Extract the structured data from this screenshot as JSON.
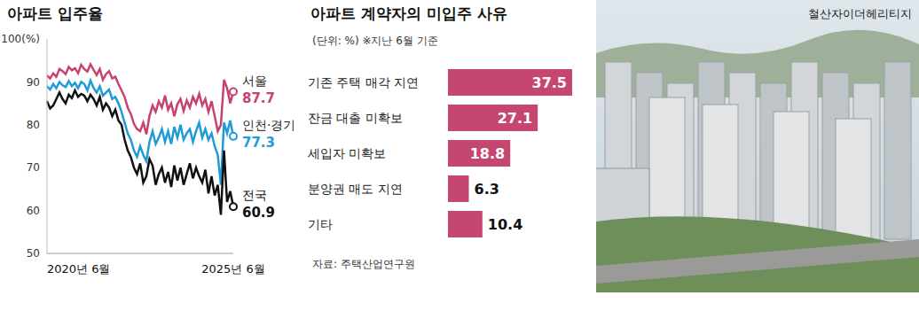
{
  "chart_data": [
    {
      "type": "line",
      "title": "아파트 입주율",
      "categories": [
        "2020년 6월",
        null,
        null,
        null,
        null,
        null,
        null,
        null,
        null,
        null,
        null,
        null,
        null,
        null,
        null,
        null,
        null,
        null,
        null,
        null,
        null,
        null,
        null,
        null,
        null,
        null,
        null,
        null,
        null,
        null,
        null,
        null,
        null,
        null,
        null,
        null,
        null,
        null,
        null,
        null,
        null,
        null,
        null,
        null,
        null,
        null,
        null,
        null,
        null,
        null,
        null,
        null,
        null,
        null,
        null,
        null,
        null,
        null,
        null,
        null,
        "2025년 6월"
      ],
      "ylim": [
        50,
        100
      ],
      "yticks": [
        50,
        60,
        70,
        80,
        90,
        {
          "value": 100,
          "label": "100(%)"
        }
      ],
      "grid": false,
      "series": [
        {
          "name": "서울",
          "color": "#c8426e",
          "values": [
            91.5,
            90.8,
            92.0,
            91.2,
            93.0,
            92.5,
            91.8,
            93.5,
            92.7,
            93.2,
            92.0,
            94.0,
            93.0,
            92.4,
            94.1,
            92.8,
            91.6,
            93.0,
            90.5,
            91.8,
            92.5,
            90.8,
            91.2,
            89.5,
            88.0,
            86.5,
            84.0,
            82.5,
            80.2,
            79.0,
            78.5,
            80.5,
            77.8,
            82.0,
            84.5,
            83.0,
            85.5,
            84.0,
            86.8,
            83.5,
            85.0,
            82.0,
            84.8,
            86.0,
            83.2,
            85.7,
            84.0,
            86.5,
            85.0,
            87.2,
            84.5,
            86.0,
            83.0,
            85.5,
            82.0,
            78.5,
            80.0,
            90.5,
            88.5,
            85.0,
            87.7
          ]
        },
        {
          "name": "인천·경기",
          "color": "#1f9bd7",
          "values": [
            89.0,
            88.2,
            89.5,
            88.5,
            90.0,
            89.2,
            88.8,
            90.2,
            89.0,
            89.8,
            88.5,
            90.0,
            89.5,
            88.0,
            90.3,
            88.6,
            87.5,
            89.0,
            86.8,
            87.5,
            88.2,
            86.0,
            86.5,
            85.0,
            83.0,
            80.5,
            78.0,
            76.5,
            74.0,
            72.5,
            75.0,
            73.0,
            71.5,
            76.0,
            78.5,
            75.5,
            77.0,
            79.0,
            76.0,
            78.5,
            75.5,
            79.5,
            77.0,
            80.0,
            76.5,
            78.0,
            79.0,
            76.0,
            78.5,
            80.5,
            77.0,
            79.0,
            76.5,
            78.0,
            75.0,
            73.0,
            66.0,
            80.5,
            78.0,
            81.0,
            77.3
          ]
        },
        {
          "name": "전국",
          "color": "#111111",
          "values": [
            85.5,
            83.8,
            84.5,
            86.0,
            87.5,
            86.0,
            85.0,
            87.0,
            86.2,
            88.0,
            86.5,
            87.2,
            86.8,
            85.5,
            87.0,
            86.0,
            84.5,
            86.5,
            83.5,
            85.0,
            84.0,
            82.0,
            83.5,
            81.0,
            80.0,
            76.5,
            74.0,
            72.5,
            70.0,
            68.5,
            71.0,
            66.5,
            68.0,
            72.0,
            70.5,
            66.0,
            68.5,
            70.0,
            66.5,
            69.0,
            65.5,
            70.5,
            67.0,
            70.0,
            66.0,
            68.5,
            71.0,
            67.5,
            70.0,
            68.0,
            66.5,
            69.5,
            64.0,
            68.0,
            63.5,
            66.0,
            59.0,
            74.0,
            62.0,
            64.5,
            60.9
          ]
        }
      ]
    },
    {
      "type": "bar",
      "title": "아파트 계약자의 미입주 사유",
      "subtitle": "(단위: %) ※지난 6월 기준",
      "orientation": "horizontal",
      "categories": [
        "기존 주택 매각 지연",
        "잔금 대출 미확보",
        "세입자 미확보",
        "분양권 매도 지연",
        "기타"
      ],
      "values": [
        37.5,
        27.1,
        18.8,
        6.3,
        10.4
      ],
      "color": "#c5466f",
      "xlim": [
        0,
        37.5
      ],
      "tick_labels": false,
      "data_labels": true,
      "source": "자료: 주택산업연구원"
    }
  ],
  "photo": {
    "caption": "철산자이더헤리티지"
  }
}
